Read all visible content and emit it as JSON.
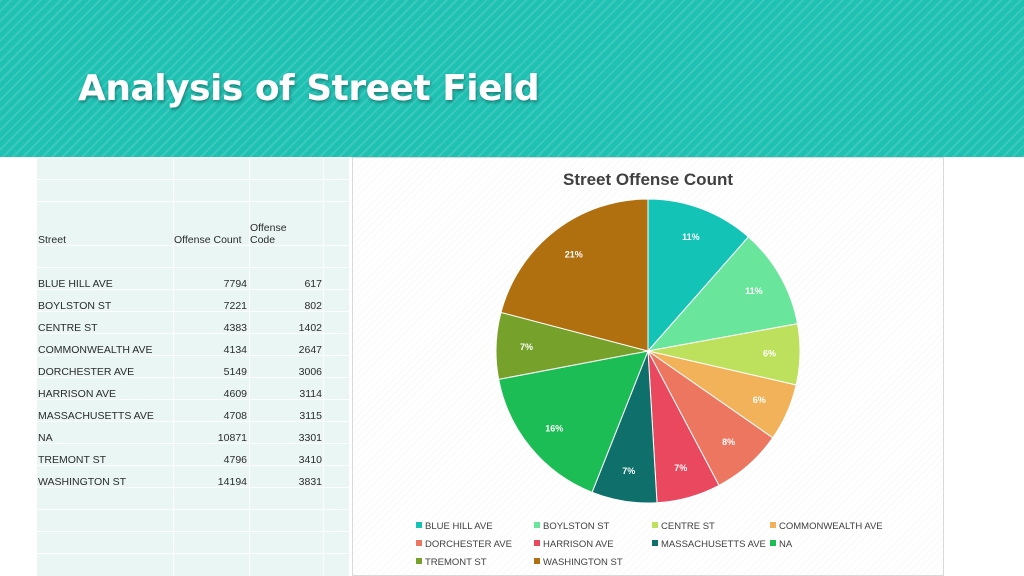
{
  "slide": {
    "title": "Analysis of Street Field"
  },
  "table": {
    "headers": {
      "street": "Street",
      "count": "Offense Count",
      "code_line1": "Offense",
      "code_line2": "Code"
    },
    "rows": [
      {
        "street": "BLUE HILL AVE",
        "count": "7794",
        "code": "617"
      },
      {
        "street": "BOYLSTON ST",
        "count": "7221",
        "code": "802"
      },
      {
        "street": "CENTRE ST",
        "count": "4383",
        "code": "1402"
      },
      {
        "street": "COMMONWEALTH AVE",
        "count": "4134",
        "code": "2647"
      },
      {
        "street": "DORCHESTER AVE",
        "count": "5149",
        "code": "3006"
      },
      {
        "street": "HARRISON AVE",
        "count": "4609",
        "code": "3114"
      },
      {
        "street": "MASSACHUSETTS AVE",
        "count": "4708",
        "code": "3115"
      },
      {
        "street": "NA",
        "count": "10871",
        "code": "3301"
      },
      {
        "street": "TREMONT ST",
        "count": "4796",
        "code": "3410"
      },
      {
        "street": "WASHINGTON ST",
        "count": "14194",
        "code": "3831"
      }
    ]
  },
  "chart_data": {
    "type": "pie",
    "title": "Street Offense Count",
    "categories": [
      "BLUE HILL AVE",
      "BOYLSTON ST",
      "CENTRE ST",
      "COMMONWEALTH AVE",
      "DORCHESTER AVE",
      "HARRISON AVE",
      "MASSACHUSETTS AVE",
      "NA",
      "TREMONT ST",
      "WASHINGTON ST"
    ],
    "values": [
      7794,
      7221,
      4383,
      4134,
      5149,
      4609,
      4708,
      10871,
      4796,
      14194
    ],
    "labels": [
      "11%",
      "11%",
      "6%",
      "6%",
      "8%",
      "7%",
      "7%",
      "16%",
      "7%",
      "21%"
    ],
    "colors": [
      "#13c4b6",
      "#6ae59c",
      "#bde15c",
      "#f1b25a",
      "#ec7660",
      "#e9485f",
      "#0e6f6b",
      "#1dbd55",
      "#76a22b",
      "#b1700f"
    ],
    "legend_position": "bottom"
  }
}
